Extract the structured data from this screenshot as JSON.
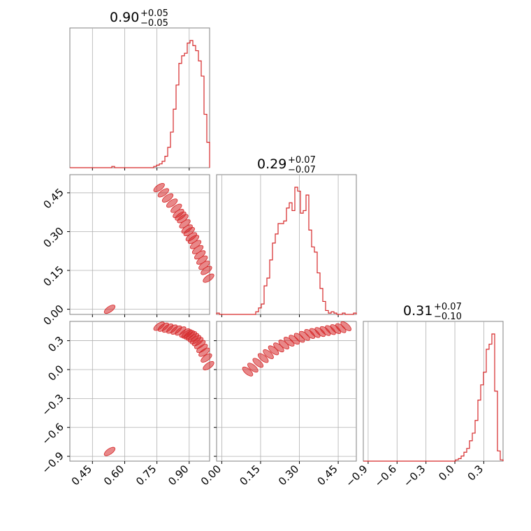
{
  "chart_data": {
    "type": "corner",
    "color": "#d62728",
    "params": [
      {
        "title": {
          "median": "0.90",
          "plus": "+0.05",
          "minus": "−0.05"
        },
        "range": [
          0.345,
          0.995
        ],
        "ticks": [
          0.45,
          0.6,
          0.75,
          0.9
        ],
        "tick_labels": [
          "0.45",
          "0.60",
          "0.75",
          "0.90"
        ],
        "hist": {
          "edges": [
            0.345,
            0.358,
            0.371,
            0.384,
            0.397,
            0.41,
            0.423,
            0.436,
            0.449,
            0.462,
            0.475,
            0.488,
            0.501,
            0.514,
            0.527,
            0.54,
            0.553,
            0.566,
            0.579,
            0.592,
            0.605,
            0.618,
            0.631,
            0.644,
            0.657,
            0.67,
            0.683,
            0.696,
            0.709,
            0.722,
            0.735,
            0.748,
            0.761,
            0.774,
            0.787,
            0.8,
            0.813,
            0.826,
            0.839,
            0.852,
            0.865,
            0.878,
            0.891,
            0.904,
            0.917,
            0.93,
            0.943,
            0.956,
            0.969,
            0.982,
            0.995
          ],
          "counts": [
            0,
            0,
            0,
            0,
            0,
            0,
            0,
            0,
            0,
            0,
            0,
            0,
            0,
            0,
            0,
            1,
            0,
            0,
            0,
            0,
            0,
            0,
            0,
            0,
            0,
            0,
            0,
            0,
            0,
            0,
            1,
            2,
            3,
            5,
            9,
            16,
            28,
            46,
            65,
            82,
            88,
            90,
            98,
            100,
            96,
            92,
            84,
            72,
            42,
            20
          ]
        }
      },
      {
        "title": {
          "median": "0.29",
          "plus": "+0.07",
          "minus": "−0.07"
        },
        "range": [
          -0.02,
          0.52
        ],
        "ticks": [
          0.0,
          0.15,
          0.3,
          0.45
        ],
        "tick_labels": [
          "0.00",
          "0.15",
          "0.30",
          "0.45"
        ],
        "hist": {
          "edges": [
            -0.02,
            -0.0092,
            0.0016,
            0.0124,
            0.0232,
            0.034,
            0.0448,
            0.0556,
            0.0664,
            0.0772,
            0.088,
            0.0988,
            0.1096,
            0.1204,
            0.1312,
            0.142,
            0.1528,
            0.1636,
            0.1744,
            0.1852,
            0.196,
            0.2068,
            0.2176,
            0.2284,
            0.2392,
            0.25,
            0.2608,
            0.2716,
            0.2824,
            0.2932,
            0.304,
            0.3148,
            0.3256,
            0.3364,
            0.3472,
            0.358,
            0.3688,
            0.3796,
            0.3904,
            0.4012,
            0.412,
            0.4228,
            0.4336,
            0.4444,
            0.4552,
            0.466,
            0.4768,
            0.4876,
            0.4984,
            0.5092,
            0.52
          ],
          "counts": [
            1,
            0,
            0,
            0,
            0,
            0,
            0,
            0,
            0,
            0,
            0,
            0,
            0,
            0,
            2,
            5,
            8,
            22,
            28,
            42,
            55,
            62,
            70,
            70,
            72,
            82,
            86,
            80,
            98,
            95,
            78,
            80,
            92,
            65,
            52,
            48,
            32,
            20,
            10,
            3,
            1,
            2,
            1,
            0,
            0,
            1,
            0,
            0,
            0,
            1
          ]
        }
      },
      {
        "title": {
          "median": "0.31",
          "plus": "+0.07",
          "minus": "−0.10"
        },
        "range": [
          -0.95,
          0.5
        ],
        "ticks": [
          -0.9,
          -0.6,
          -0.3,
          0.0,
          0.3
        ],
        "tick_labels": [
          "−0.9",
          "−0.6",
          "−0.3",
          "0.0",
          "0.3"
        ],
        "hist": {
          "edges": [
            -0.95,
            -0.921,
            -0.892,
            -0.863,
            -0.834,
            -0.805,
            -0.776,
            -0.747,
            -0.718,
            -0.689,
            -0.66,
            -0.631,
            -0.602,
            -0.573,
            -0.544,
            -0.515,
            -0.486,
            -0.457,
            -0.428,
            -0.399,
            -0.37,
            -0.341,
            -0.312,
            -0.283,
            -0.254,
            -0.225,
            -0.196,
            -0.167,
            -0.138,
            -0.109,
            -0.08,
            -0.051,
            -0.022,
            0.007,
            0.036,
            0.065,
            0.094,
            0.123,
            0.152,
            0.181,
            0.21,
            0.239,
            0.268,
            0.297,
            0.326,
            0.355,
            0.384,
            0.413,
            0.442,
            0.471,
            0.5
          ],
          "counts": [
            0,
            0,
            0,
            0,
            0,
            0,
            0,
            0,
            0,
            0,
            0,
            0,
            0,
            0,
            0,
            0,
            0,
            0,
            0,
            0,
            0,
            0,
            0,
            0,
            0,
            0,
            0,
            0,
            0,
            0,
            0,
            0,
            0,
            1,
            2,
            4,
            7,
            10,
            16,
            22,
            32,
            48,
            60,
            70,
            88,
            92,
            100,
            55,
            8,
            1,
            0
          ]
        }
      }
    ],
    "ylim_labels": {
      "row1": {
        "range": [
          -0.02,
          0.52
        ],
        "ticks": [
          0.0,
          0.15,
          0.3,
          0.45
        ],
        "tick_labels": [
          "0.00",
          "0.15",
          "0.30",
          "0.45"
        ]
      },
      "row2": {
        "range": [
          -0.95,
          0.5
        ],
        "ticks": [
          -0.9,
          -0.6,
          -0.3,
          0.0,
          0.3
        ],
        "tick_labels": [
          "−0.9",
          "−0.6",
          "−0.3",
          "0.0",
          "0.3"
        ]
      }
    },
    "scatter_0_1": {
      "x": [
        0.76,
        0.78,
        0.8,
        0.82,
        0.84,
        0.85,
        0.86,
        0.87,
        0.88,
        0.89,
        0.9,
        0.91,
        0.92,
        0.93,
        0.94,
        0.95,
        0.96,
        0.97,
        0.98,
        0.99,
        0.53
      ],
      "y": [
        0.47,
        0.45,
        0.43,
        0.41,
        0.39,
        0.37,
        0.36,
        0.35,
        0.33,
        0.31,
        0.3,
        0.28,
        0.27,
        0.25,
        0.23,
        0.21,
        0.19,
        0.17,
        0.15,
        0.12,
        0.0
      ]
    },
    "scatter_0_2": {
      "x": [
        0.76,
        0.78,
        0.8,
        0.82,
        0.84,
        0.86,
        0.88,
        0.89,
        0.9,
        0.91,
        0.92,
        0.93,
        0.94,
        0.95,
        0.96,
        0.97,
        0.98,
        0.99,
        0.53
      ],
      "y": [
        0.45,
        0.44,
        0.43,
        0.42,
        0.41,
        0.4,
        0.38,
        0.37,
        0.36,
        0.35,
        0.33,
        0.31,
        0.29,
        0.26,
        0.22,
        0.18,
        0.12,
        0.04,
        -0.85
      ]
    },
    "scatter_1_2": {
      "x": [
        0.1,
        0.12,
        0.14,
        0.16,
        0.18,
        0.2,
        0.22,
        0.24,
        0.26,
        0.28,
        0.3,
        0.32,
        0.34,
        0.36,
        0.38,
        0.4,
        0.42,
        0.44,
        0.46,
        0.48
      ],
      "y": [
        -0.02,
        0.02,
        0.07,
        0.12,
        0.16,
        0.2,
        0.23,
        0.26,
        0.29,
        0.31,
        0.33,
        0.35,
        0.37,
        0.38,
        0.39,
        0.4,
        0.41,
        0.42,
        0.43,
        0.45
      ]
    }
  }
}
